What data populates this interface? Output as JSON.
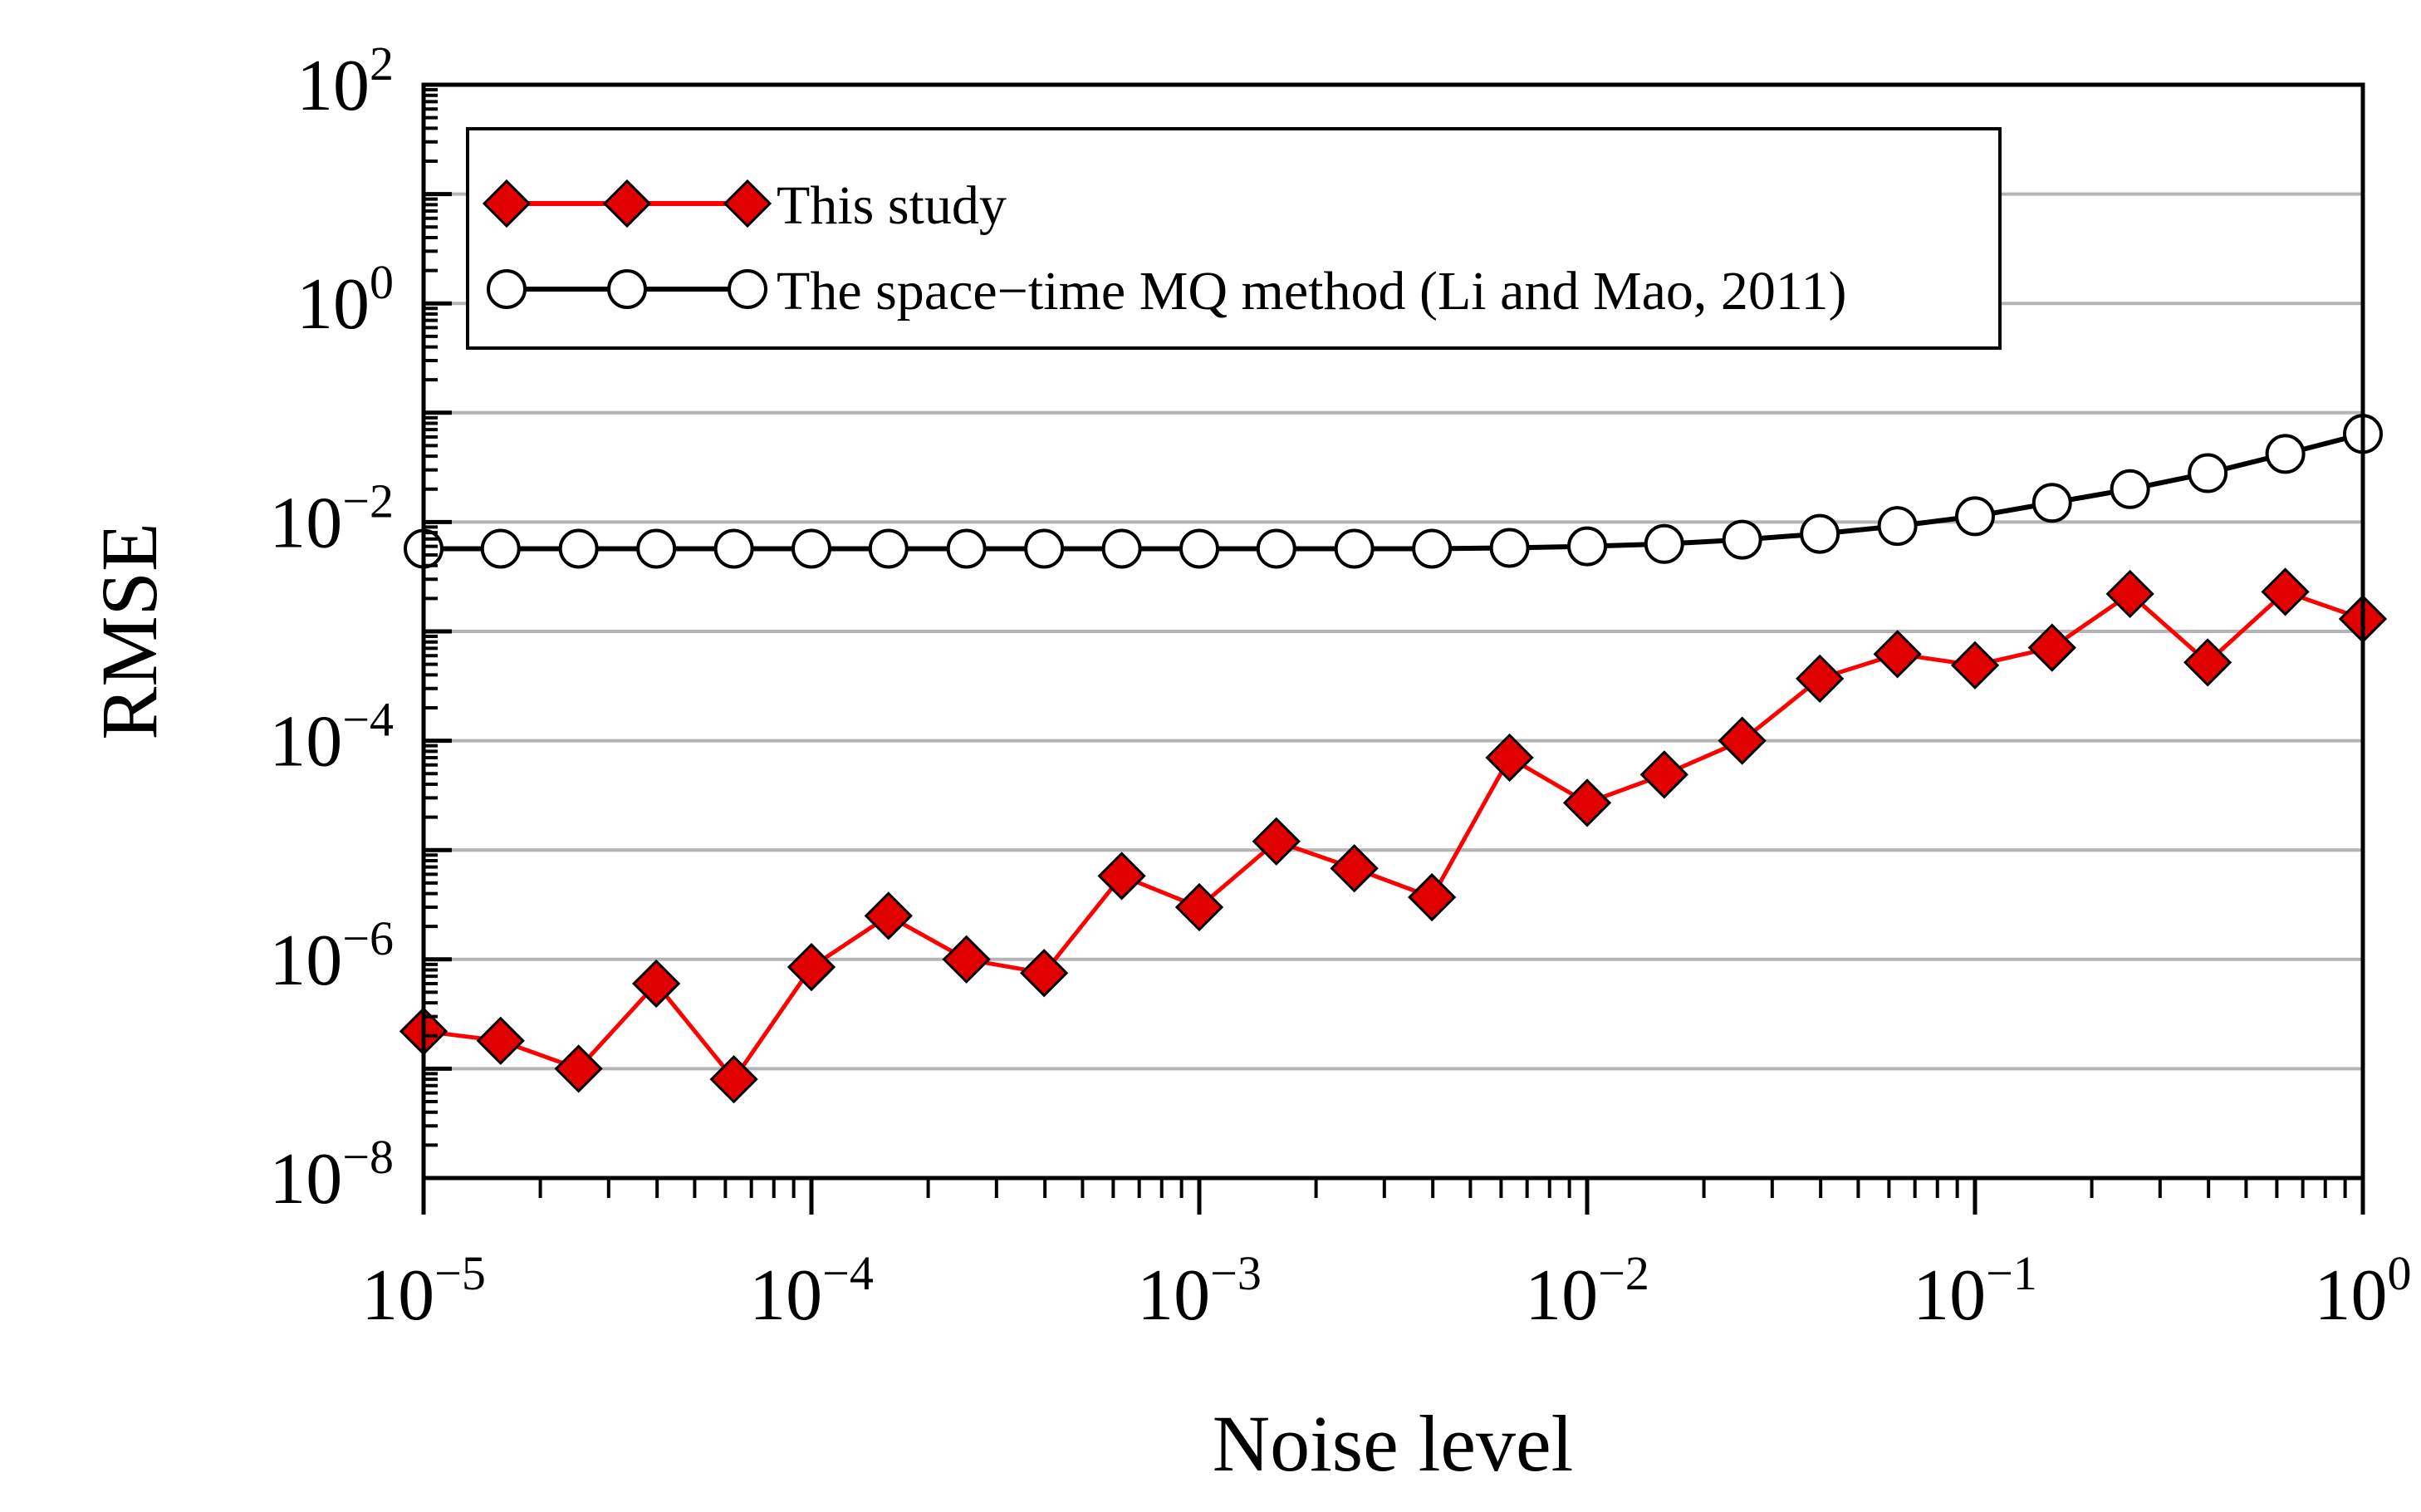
{
  "chart_data": {
    "type": "line",
    "xscale": "log",
    "yscale": "log",
    "xlabel": "Noise level",
    "ylabel": "RMSE",
    "xlim": [
      1e-05,
      1
    ],
    "ylim": [
      1e-08,
      100
    ],
    "grid": true,
    "grid_axis": "y",
    "legend_position": "top-left",
    "x_ticks": [
      {
        "base": "10",
        "exp": "−5",
        "value": 1e-05
      },
      {
        "base": "10",
        "exp": "−4",
        "value": 0.0001
      },
      {
        "base": "10",
        "exp": "−3",
        "value": 0.001
      },
      {
        "base": "10",
        "exp": "−2",
        "value": 0.01
      },
      {
        "base": "10",
        "exp": "−1",
        "value": 0.1
      },
      {
        "base": "10",
        "exp": "0",
        "value": 1
      }
    ],
    "y_ticks": [
      {
        "base": "10",
        "exp": "−8",
        "value": 1e-08
      },
      {
        "base": "10",
        "exp": "−6",
        "value": 1e-06
      },
      {
        "base": "10",
        "exp": "−4",
        "value": 0.0001
      },
      {
        "base": "10",
        "exp": "−2",
        "value": 0.01
      },
      {
        "base": "10",
        "exp": "0",
        "value": 1
      },
      {
        "base": "10",
        "exp": "2",
        "value": 100
      }
    ],
    "x": [
      1e-05,
      1.58e-05,
      2.51e-05,
      3.98e-05,
      6.31e-05,
      0.0001,
      0.000158,
      0.000251,
      0.000398,
      0.000631,
      0.001,
      0.00158,
      0.00251,
      0.00398,
      0.00631,
      0.01,
      0.0158,
      0.0251,
      0.0398,
      0.0631,
      0.1,
      0.158,
      0.251,
      0.398,
      0.631,
      1
    ],
    "series": [
      {
        "name": "This study",
        "color": "#e00000",
        "marker": "diamond",
        "values": [
          2.2e-07,
          1.8e-07,
          1e-07,
          6e-07,
          8e-08,
          8.5e-07,
          2.5e-06,
          1e-06,
          7.5e-07,
          5.8e-06,
          3e-06,
          1.2e-05,
          6.8e-06,
          3.7e-06,
          7e-05,
          2.7e-05,
          4.9e-05,
          0.0001,
          0.00037,
          0.00062,
          0.00049,
          0.00071,
          0.0022,
          0.00052,
          0.0023,
          0.0013
        ]
      },
      {
        "name": "The space−time MQ method (Li and Mao, 2011)",
        "color": "#000000",
        "marker": "open-circle",
        "values": [
          0.0057,
          0.0057,
          0.0057,
          0.0057,
          0.0057,
          0.0057,
          0.0057,
          0.0057,
          0.0057,
          0.0057,
          0.0057,
          0.0057,
          0.0057,
          0.0057,
          0.0058,
          0.006,
          0.0063,
          0.0069,
          0.0078,
          0.0092,
          0.0113,
          0.015,
          0.02,
          0.028,
          0.042,
          0.064
        ]
      }
    ]
  }
}
